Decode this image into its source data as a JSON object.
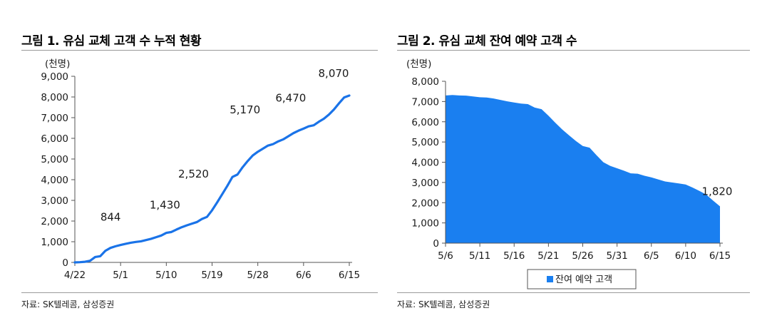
{
  "panels": [
    {
      "title": "그림 1. 유심 교체 고객 수 누적 현황",
      "source": "자료: SK텔레콤, 삼성증권"
    },
    {
      "title": "그림 2. 유심 교체 잔여 예약 고객 수",
      "source": "자료: SK텔레콤, 삼성증권"
    }
  ],
  "chart_data": [
    {
      "type": "line",
      "title": "그림 1. 유심 교체 고객 수 누적 현황",
      "unit_label": "(천명)",
      "ylim": [
        0,
        9000
      ],
      "y_ticks": [
        "0",
        "1,000",
        "2,000",
        "3,000",
        "4,000",
        "5,000",
        "6,000",
        "7,000",
        "8,000",
        "9,000"
      ],
      "x_ticks": [
        "4/22",
        "5/1",
        "5/10",
        "5/19",
        "5/28",
        "6/6",
        "6/15"
      ],
      "x_start": "2025-04-22",
      "x_end": "2025-06-15",
      "color": "#1a73e8",
      "grid": false,
      "series": [
        {
          "x": [
            "2025-04-22",
            "2025-04-23",
            "2025-04-24",
            "2025-04-25",
            "2025-04-26",
            "2025-04-27",
            "2025-04-28",
            "2025-04-29",
            "2025-04-30",
            "2025-05-01",
            "2025-05-02",
            "2025-05-03",
            "2025-05-04",
            "2025-05-05",
            "2025-05-06",
            "2025-05-07",
            "2025-05-08",
            "2025-05-09",
            "2025-05-10",
            "2025-05-11",
            "2025-05-12",
            "2025-05-13",
            "2025-05-14",
            "2025-05-15",
            "2025-05-16",
            "2025-05-17",
            "2025-05-18",
            "2025-05-19",
            "2025-05-20",
            "2025-05-21",
            "2025-05-22",
            "2025-05-23",
            "2025-05-24",
            "2025-05-25",
            "2025-05-26",
            "2025-05-27",
            "2025-05-28",
            "2025-05-29",
            "2025-05-30",
            "2025-05-31",
            "2025-06-01",
            "2025-06-02",
            "2025-06-03",
            "2025-06-04",
            "2025-06-05",
            "2025-06-06",
            "2025-06-07",
            "2025-06-08",
            "2025-06-09",
            "2025-06-10",
            "2025-06-11",
            "2025-06-12",
            "2025-06-13",
            "2025-06-14",
            "2025-06-15"
          ],
          "values": [
            0,
            10,
            30,
            80,
            260,
            300,
            560,
            700,
            780,
            844,
            900,
            950,
            990,
            1020,
            1080,
            1140,
            1220,
            1300,
            1430,
            1470,
            1590,
            1700,
            1790,
            1870,
            1950,
            2100,
            2200,
            2520,
            2900,
            3300,
            3700,
            4130,
            4250,
            4600,
            4900,
            5170,
            5350,
            5500,
            5650,
            5720,
            5850,
            5950,
            6100,
            6250,
            6370,
            6470,
            6580,
            6630,
            6800,
            6950,
            7150,
            7400,
            7700,
            7980,
            8070
          ]
        }
      ],
      "data_labels": [
        {
          "x": "2025-05-01",
          "text": "844"
        },
        {
          "x": "2025-05-10",
          "text": "1,430"
        },
        {
          "x": "2025-05-19",
          "text": "2,520"
        },
        {
          "x": "2025-05-28",
          "text": "5,170"
        },
        {
          "x": "2025-06-06",
          "text": "6,470"
        },
        {
          "x": "2025-06-15",
          "text": "8,070"
        }
      ]
    },
    {
      "type": "area",
      "title": "그림 2. 유심 교체 잔여 예약 고객 수",
      "unit_label": "(천명)",
      "ylim": [
        0,
        8000
      ],
      "y_ticks": [
        "0",
        "1,000",
        "2,000",
        "3,000",
        "4,000",
        "5,000",
        "6,000",
        "7,000",
        "8,000"
      ],
      "x_ticks": [
        "5/6",
        "5/11",
        "5/16",
        "5/21",
        "5/26",
        "5/31",
        "6/5",
        "6/10",
        "6/15"
      ],
      "x_start": "2025-05-06",
      "x_end": "2025-06-15",
      "color": "#1a7ff0",
      "grid": false,
      "legend": {
        "position": "bottom",
        "label": "잔여 예약 고객"
      },
      "series": [
        {
          "name": "잔여 예약 고객",
          "x": [
            "2025-05-06",
            "2025-05-07",
            "2025-05-08",
            "2025-05-09",
            "2025-05-10",
            "2025-05-11",
            "2025-05-12",
            "2025-05-13",
            "2025-05-14",
            "2025-05-15",
            "2025-05-16",
            "2025-05-17",
            "2025-05-18",
            "2025-05-19",
            "2025-05-20",
            "2025-05-21",
            "2025-05-22",
            "2025-05-23",
            "2025-05-24",
            "2025-05-25",
            "2025-05-26",
            "2025-05-27",
            "2025-05-28",
            "2025-05-29",
            "2025-05-30",
            "2025-05-31",
            "2025-06-01",
            "2025-06-02",
            "2025-06-03",
            "2025-06-04",
            "2025-06-05",
            "2025-06-06",
            "2025-06-07",
            "2025-06-08",
            "2025-06-09",
            "2025-06-10",
            "2025-06-11",
            "2025-06-12",
            "2025-06-13",
            "2025-06-14",
            "2025-06-15"
          ],
          "values": [
            7300,
            7320,
            7300,
            7290,
            7250,
            7210,
            7200,
            7150,
            7080,
            7010,
            6950,
            6900,
            6870,
            6700,
            6620,
            6300,
            5950,
            5620,
            5330,
            5050,
            4800,
            4720,
            4350,
            4000,
            3820,
            3700,
            3580,
            3450,
            3430,
            3330,
            3250,
            3150,
            3050,
            3000,
            2950,
            2900,
            2750,
            2580,
            2400,
            2100,
            1820
          ]
        }
      ],
      "data_labels": [
        {
          "x": "2025-06-15",
          "text": "1,820"
        }
      ]
    }
  ]
}
